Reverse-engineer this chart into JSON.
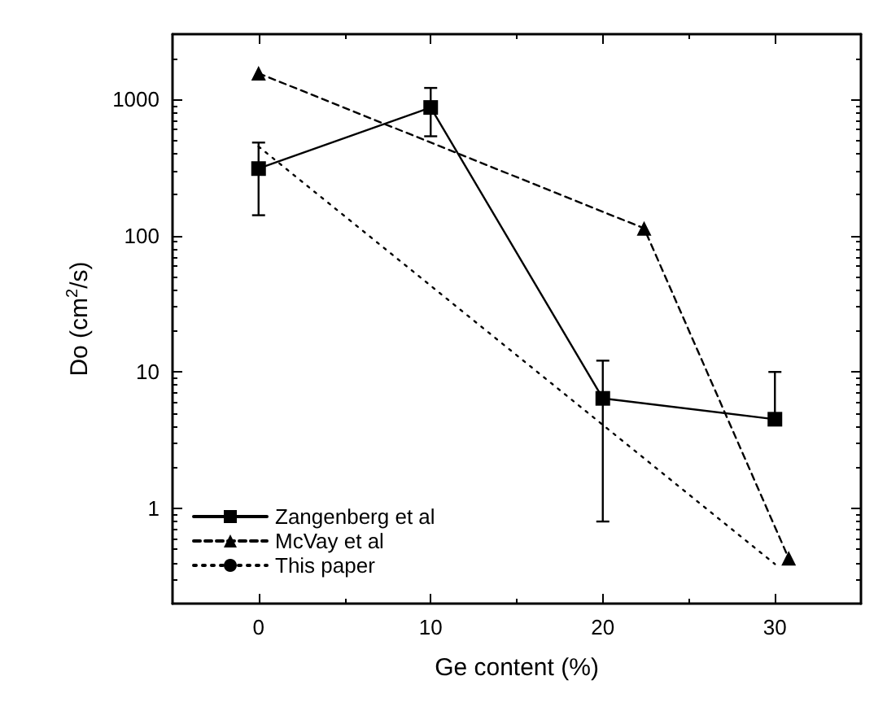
{
  "chart_data": {
    "type": "line",
    "xlabel": "Ge content (%)",
    "ylabel": "Do (cm$^{2}$/s)",
    "xlim": [
      -5,
      35
    ],
    "xticks": [
      0,
      10,
      20,
      30
    ],
    "ylim": [
      0.2,
      3000
    ],
    "yticks": [
      1,
      10,
      100,
      1000
    ],
    "log": "y",
    "grid": false,
    "legend": "bottom left",
    "series": [
      {
        "name": "Zangenberg et al",
        "color": "#000000",
        "marker": "square",
        "line_style": "solid",
        "x": [
          0,
          10,
          20,
          30
        ],
        "values": [
          310,
          870,
          6.4,
          4.5
        ],
        "errors": [
          [
            141,
            481
          ],
          [
            535,
            1210
          ],
          [
            0.8,
            12.1
          ],
          [
            4.5,
            10
          ]
        ]
      },
      {
        "name": "McVay et al",
        "color": "#000000",
        "marker": "triangle",
        "line_style": "dashed",
        "x": [
          0,
          22.4,
          30.8
        ],
        "values": [
          1550,
          113,
          0.43
        ]
      },
      {
        "name": "This paper",
        "color": "#000000",
        "marker": "none",
        "line_style": "dotted",
        "x": [
          0,
          30
        ],
        "values": [
          450,
          0.39
        ]
      }
    ]
  }
}
